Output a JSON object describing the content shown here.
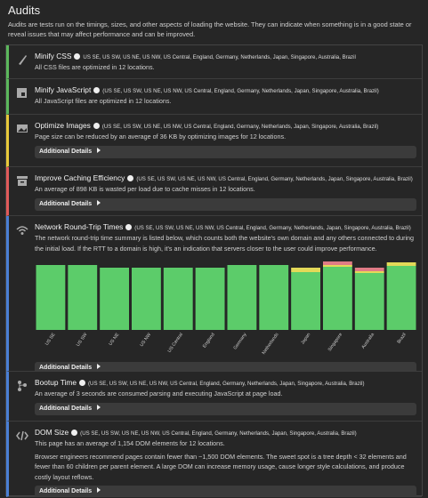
{
  "header": {
    "title": "Audits",
    "description": "Audits are tests run on the timings, sizes, and other aspects of loading the website. They can indicate when something is in a good state or reveal issues that may affect performance and can be improved."
  },
  "audits": [
    {
      "title": "Minify CSS",
      "color": "#5cb85c",
      "locations": "US SE, US SW, US NE, US NW, US Central, England, Germany, Netherlands, Japan, Singapore, Australia, Brazil",
      "text": [
        "All CSS files are optimized in 12 locations."
      ]
    },
    {
      "title": "Minify JavaScript",
      "color": "#5cb85c",
      "locations": "(US SE, US SW, US NE, US NW, US Central, England, Germany, Netherlands, Japan, Singapore, Australia, Brazil)",
      "text": [
        "All JavaScript files are optimized in 12 locations."
      ]
    },
    {
      "title": "Optimize Images",
      "color": "#e8c93a",
      "locations": "(US SE, US SW, US NE, US NW, US Central, England, Germany, Netherlands, Japan, Singapore, Australia, Brazil)",
      "text": [
        "Page size can be reduced by an average of 36 KB by optimizing images for 12 locations."
      ],
      "details": "Additional Details"
    },
    {
      "title": "Improve Caching Efficiency",
      "color": "#e05a5a",
      "locations": "(US SE, US SW, US NE, US NW, US Central, England, Germany, Netherlands, Japan, Singapore, Australia, Brazil)",
      "text": [
        "An average of 898 KB is wasted per load due to cache misses in 12 locations."
      ],
      "details": "Additional Details"
    },
    {
      "title": "Network Round-Trip Times",
      "color": "#4a7fd4",
      "locations": "(US SE, US SW, US NE, US NW, US Central, England, Germany, Netherlands, Japan, Singapore, Australia, Brazil)",
      "text": [
        "The network round-trip time summary is listed below, which counts both the website's own domain and any others connected to during the initial load. If the RTT to a domain is high, it's an indication that servers closer to the user could improve performance."
      ],
      "details": "Additional Details"
    },
    {
      "title": "Bootup Time",
      "color": "#4a7fd4",
      "locations": "(US SE, US SW, US NE, US NW, US Central, England, Germany, Netherlands, Japan, Singapore, Australia, Brazil)",
      "text": [
        "An average of 3 seconds are consumed parsing and executing JavaScript at page load."
      ],
      "details": "Additional Details"
    },
    {
      "title": "DOM Size",
      "color": "#4a7fd4",
      "locations": "(US SE, US SW, US NE, US NW, US Central, England, Germany, Netherlands, Japan, Singapore, Australia, Brazil)",
      "text": [
        "This page has an average of 1,154 DOM elements for 12 locations.",
        "Browser engineers recommend pages contain fewer than ~1,500 DOM elements. The sweet spot is a tree depth < 32 elements and fewer than 60 children per parent element. A large DOM can increase memory usage, cause longer style calculations, and produce costly layout reflows."
      ],
      "details": "Additional Details"
    }
  ],
  "chart_data": {
    "type": "bar",
    "stacked": true,
    "categories": [
      "US SE",
      "US SW",
      "US NE",
      "US NW",
      "US Central",
      "England",
      "Germany",
      "Netherlands",
      "Japan",
      "Singapore",
      "Australia",
      "Brazil"
    ],
    "series": [
      {
        "color": "#5ccc6a",
        "values": [
          73,
          73,
          70,
          70,
          70,
          70,
          73,
          73,
          65,
          71,
          64,
          72
        ]
      },
      {
        "color": "#e3d958",
        "values": [
          0,
          0,
          0,
          0,
          0,
          0,
          0,
          0,
          5,
          2,
          2,
          4
        ]
      },
      {
        "color": "#e07b86",
        "values": [
          0,
          0,
          0,
          0,
          0,
          0,
          0,
          0,
          0,
          4,
          4,
          0
        ]
      }
    ],
    "ylim": [
      0,
      80
    ]
  }
}
